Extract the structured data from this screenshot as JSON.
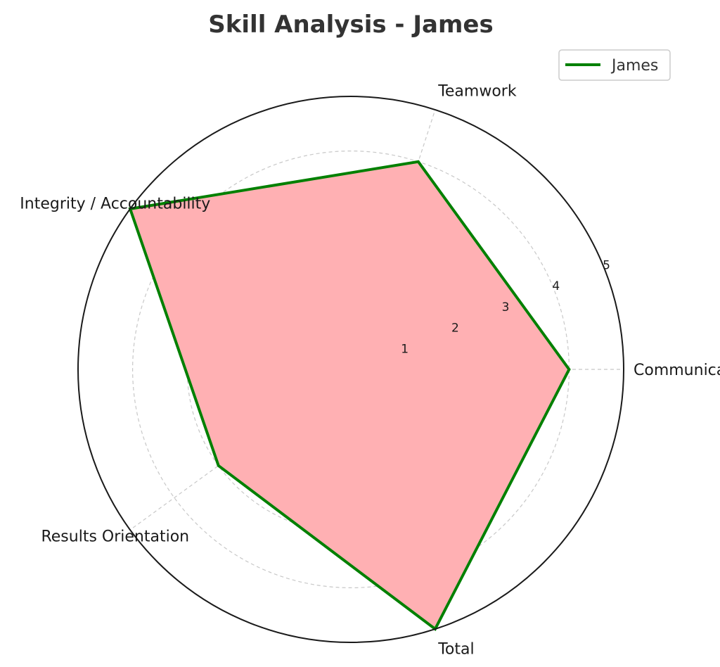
{
  "chart_data": {
    "type": "radar",
    "title": "Skill Analysis - James",
    "categories": [
      "Communication",
      "Teamwork",
      "Integrity / Accountability",
      "Results Orientation",
      "Total"
    ],
    "series": [
      {
        "name": "James",
        "values": [
          4.0,
          4.0,
          5.0,
          3.0,
          5.0
        ]
      }
    ],
    "rlim": [
      0,
      5
    ],
    "rticks": [
      "1",
      "2",
      "3",
      "4",
      "5"
    ],
    "grid": true,
    "legend": "top-right",
    "colors": {
      "line": "#008000",
      "fill": "#ffb0b3",
      "grid": "#c8c8c8",
      "frame": "#1a1a1a"
    }
  }
}
